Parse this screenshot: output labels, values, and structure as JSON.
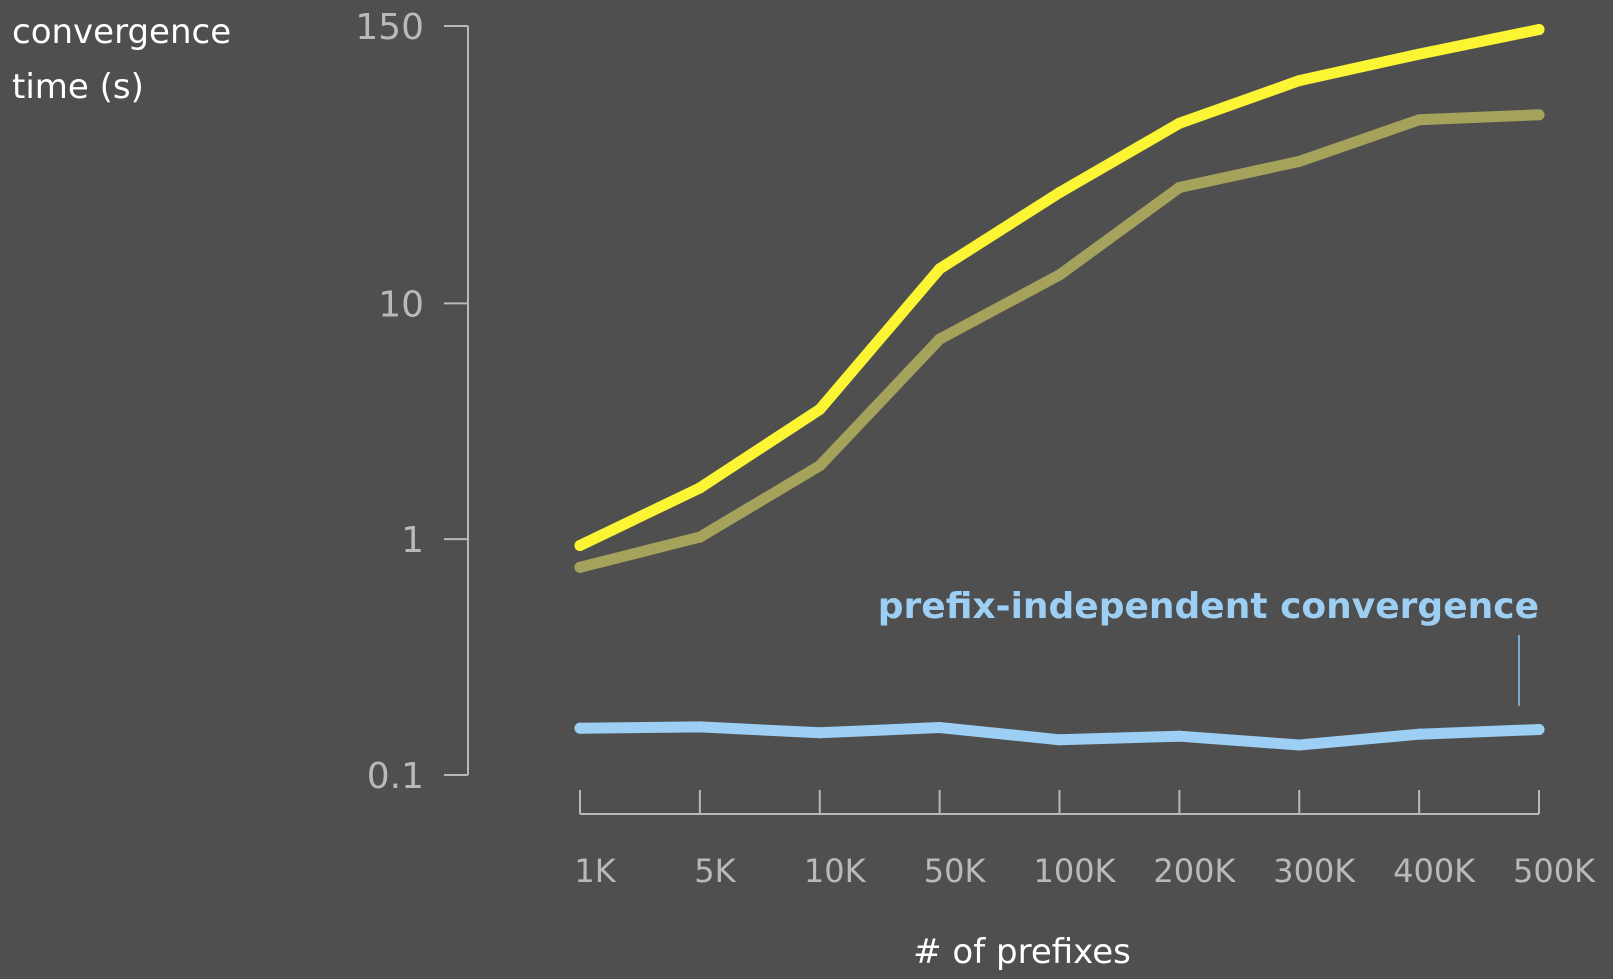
{
  "chart_data": {
    "type": "line",
    "title": "",
    "ylabel_lines": [
      "convergence",
      "time (s)"
    ],
    "xlabel": "# of prefixes",
    "x_categories": [
      "1K",
      "5K",
      "10K",
      "50K",
      "100K",
      "200K",
      "300K",
      "400K",
      "500K"
    ],
    "y_scale": "log",
    "ylim": [
      0.1,
      150
    ],
    "y_ticks": [
      {
        "value": 150,
        "label": "150"
      },
      {
        "value": 10,
        "label": "10"
      },
      {
        "value": 1,
        "label": "1"
      },
      {
        "value": 0.1,
        "label": "0.1"
      }
    ],
    "grid": false,
    "legend": "none",
    "series": [
      {
        "color": "#fbf534",
        "values": [
          0.94,
          1.65,
          3.55,
          14.0,
          29.5,
          58.0,
          88.0,
          114.0,
          145.0
        ]
      },
      {
        "color": "#a5a25c",
        "values": [
          0.76,
          1.02,
          2.05,
          7.05,
          13.2,
          31.0,
          40.0,
          60.0,
          63.0
        ]
      },
      {
        "color": "#9ccff3",
        "values": [
          0.158,
          0.16,
          0.151,
          0.159,
          0.141,
          0.146,
          0.134,
          0.149,
          0.156
        ]
      }
    ],
    "annotations": [
      {
        "text": "prefix-independent convergence",
        "color": "#9ccff3",
        "anchor_category": "500K",
        "pointer_value_top": 0.3,
        "pointer_value_bottom": 0.2
      }
    ]
  }
}
